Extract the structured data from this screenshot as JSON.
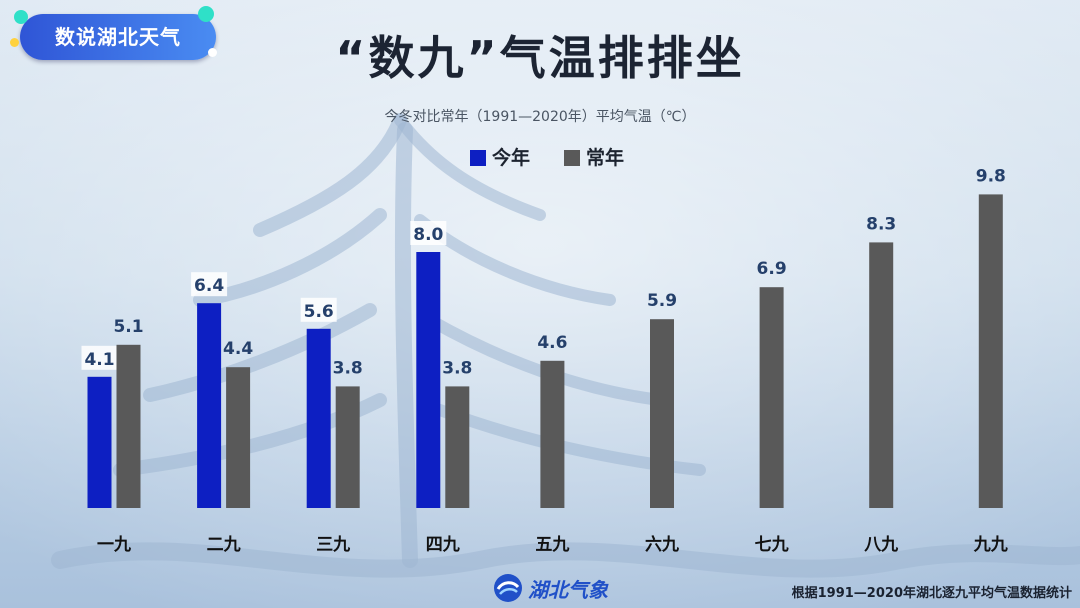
{
  "badge": {
    "text": "数说湖北天气"
  },
  "title": "“数九”气温排排坐",
  "subtitle": "今冬对比常年（1991—2020年）平均气温（℃）",
  "colors": {
    "this_year": "#0d1fc2",
    "normal": "#595959",
    "badge": "#2f55d6",
    "logo": "#2050c8"
  },
  "chart_data": {
    "type": "bar",
    "title": "“数九”气温排排坐",
    "subtitle": "今冬对比常年（1991—2020年）平均气温（℃）",
    "categories": [
      "一九",
      "二九",
      "三九",
      "四九",
      "五九",
      "六九",
      "七九",
      "八九",
      "九九"
    ],
    "series": [
      {
        "name": "今年",
        "color": "#0d1fc2",
        "values": [
          4.1,
          6.4,
          5.6,
          8.0,
          null,
          null,
          null,
          null,
          null
        ]
      },
      {
        "name": "常年",
        "color": "#595959",
        "values": [
          5.1,
          4.4,
          3.8,
          3.8,
          4.6,
          5.9,
          6.9,
          8.3,
          9.8
        ]
      }
    ],
    "ylim": [
      0,
      10.5
    ],
    "legend": "top-center",
    "grid": false
  },
  "footer": {
    "logo_icon": "hubei-meteorology-logo-icon",
    "logo_text": "湖北气象",
    "note": "根据1991—2020年湖北逐九平均气温数据统计"
  }
}
